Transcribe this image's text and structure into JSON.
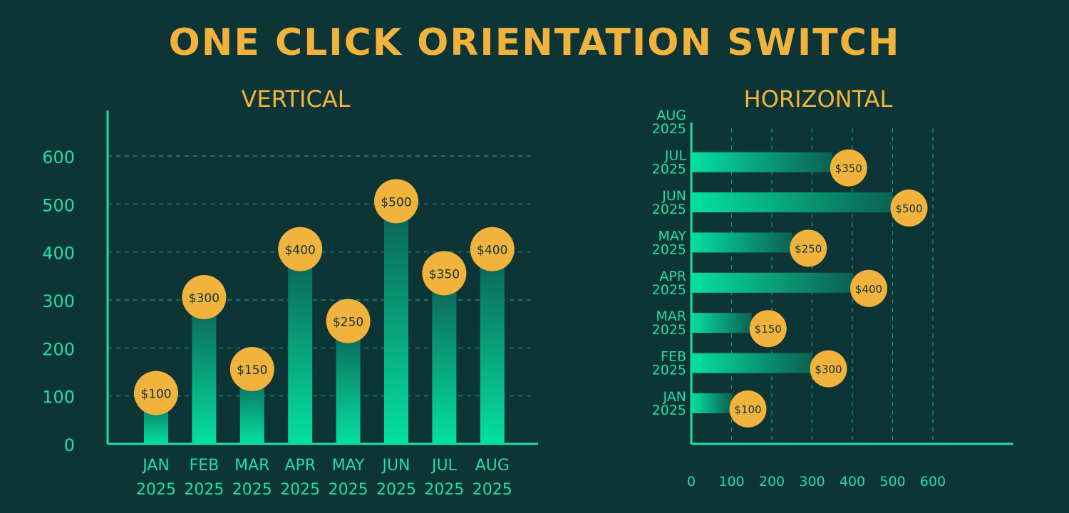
{
  "title": "ONE CLICK ORIENTATION SWITCH",
  "colors": {
    "background": "#0e3536",
    "accent": "#f2b33d",
    "axis": "#1fe0a2",
    "bar_light": "#04e0a2",
    "bar_dark": "#0c6152",
    "label_text": "#0e3536"
  },
  "chart_data": [
    {
      "type": "bar",
      "orientation": "vertical",
      "title": "VERTICAL",
      "categories": [
        {
          "month": "JAN",
          "year": "2025"
        },
        {
          "month": "FEB",
          "year": "2025"
        },
        {
          "month": "MAR",
          "year": "2025"
        },
        {
          "month": "APR",
          "year": "2025"
        },
        {
          "month": "MAY",
          "year": "2025"
        },
        {
          "month": "JUN",
          "year": "2025"
        },
        {
          "month": "JUL",
          "year": "2025"
        },
        {
          "month": "AUG",
          "year": "2025"
        }
      ],
      "values": [
        100,
        300,
        150,
        400,
        250,
        500,
        350,
        400
      ],
      "data_labels": [
        "$100",
        "$300",
        "$150",
        "$400",
        "$250",
        "$500",
        "$350",
        "$400"
      ],
      "ylim": [
        0,
        600
      ],
      "yticks": [
        "0",
        "100",
        "200",
        "300",
        "400",
        "500",
        "600"
      ],
      "grid": "horizontal dashed"
    },
    {
      "type": "bar",
      "orientation": "horizontal",
      "title": "HORIZONTAL",
      "categories": [
        {
          "month": "JAN",
          "year": "2025"
        },
        {
          "month": "FEB",
          "year": "2025"
        },
        {
          "month": "MAR",
          "year": "2025"
        },
        {
          "month": "APR",
          "year": "2025"
        },
        {
          "month": "MAY",
          "year": "2025"
        },
        {
          "month": "JUN",
          "year": "2025"
        },
        {
          "month": "JUL",
          "year": "2025"
        },
        {
          "month": "AUG",
          "year": "2025"
        }
      ],
      "values": [
        100,
        300,
        150,
        400,
        250,
        500,
        350,
        null
      ],
      "data_labels": [
        "$100",
        "$300",
        "$150",
        "$400",
        "$250",
        "$500",
        "$350",
        null
      ],
      "xlim": [
        0,
        600
      ],
      "xticks": [
        "0",
        "100",
        "200",
        "300",
        "400",
        "500",
        "600"
      ],
      "grid": "vertical dashed"
    }
  ]
}
